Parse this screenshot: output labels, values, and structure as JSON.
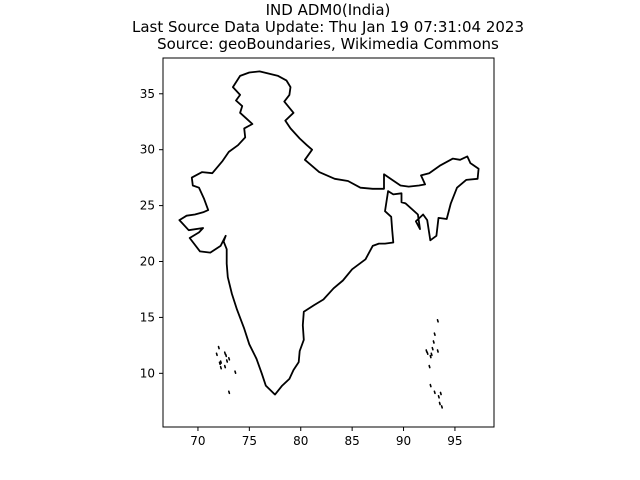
{
  "title": {
    "lines": [
      "IND ADM0(India)",
      "Last Source Data Update: Thu Jan 19 07:31:04 2023",
      "Source: geoBoundaries, Wikimedia Commons"
    ]
  },
  "chart_data": {
    "type": "map",
    "xlim": [
      66.6,
      98.8
    ],
    "ylim": [
      5.2,
      38.2
    ],
    "x_ticks": [
      70,
      75,
      80,
      85,
      90,
      95
    ],
    "y_ticks": [
      10,
      15,
      20,
      25,
      30,
      35
    ],
    "grid": false,
    "line_color": "#000000",
    "background_color": "#ffffff",
    "mainland_outline": [
      [
        68.2,
        23.7
      ],
      [
        68.9,
        24.1
      ],
      [
        69.7,
        24.2
      ],
      [
        70.5,
        24.4
      ],
      [
        71.0,
        24.6
      ],
      [
        70.6,
        25.6
      ],
      [
        70.1,
        26.6
      ],
      [
        69.5,
        26.8
      ],
      [
        69.4,
        27.5
      ],
      [
        70.4,
        28.0
      ],
      [
        71.4,
        27.9
      ],
      [
        72.4,
        29.0
      ],
      [
        73.0,
        29.8
      ],
      [
        73.9,
        30.4
      ],
      [
        74.6,
        31.1
      ],
      [
        74.5,
        31.9
      ],
      [
        75.3,
        32.3
      ],
      [
        74.7,
        32.8
      ],
      [
        74.1,
        33.3
      ],
      [
        74.3,
        33.9
      ],
      [
        73.7,
        34.4
      ],
      [
        74.1,
        34.9
      ],
      [
        73.4,
        35.6
      ],
      [
        74.1,
        36.6
      ],
      [
        75.0,
        36.9
      ],
      [
        76.0,
        37.0
      ],
      [
        77.8,
        36.6
      ],
      [
        78.6,
        36.2
      ],
      [
        79.0,
        35.6
      ],
      [
        78.9,
        34.9
      ],
      [
        78.4,
        34.3
      ],
      [
        79.3,
        33.3
      ],
      [
        78.5,
        32.6
      ],
      [
        79.0,
        31.9
      ],
      [
        79.9,
        31.0
      ],
      [
        80.6,
        30.4
      ],
      [
        81.1,
        30.0
      ],
      [
        80.4,
        29.1
      ],
      [
        81.8,
        28.0
      ],
      [
        83.3,
        27.4
      ],
      [
        84.6,
        27.2
      ],
      [
        85.8,
        26.6
      ],
      [
        87.0,
        26.5
      ],
      [
        88.1,
        26.5
      ],
      [
        88.1,
        27.8
      ],
      [
        88.9,
        27.3
      ],
      [
        89.7,
        26.8
      ],
      [
        90.5,
        26.7
      ],
      [
        91.5,
        26.8
      ],
      [
        92.1,
        26.9
      ],
      [
        91.7,
        27.7
      ],
      [
        92.5,
        27.9
      ],
      [
        93.6,
        28.6
      ],
      [
        94.8,
        29.2
      ],
      [
        95.5,
        29.1
      ],
      [
        96.2,
        29.4
      ],
      [
        96.5,
        28.8
      ],
      [
        97.3,
        28.3
      ],
      [
        97.2,
        27.4
      ],
      [
        96.1,
        27.3
      ],
      [
        95.2,
        26.6
      ],
      [
        94.6,
        25.2
      ],
      [
        94.2,
        23.8
      ],
      [
        93.4,
        23.9
      ],
      [
        93.2,
        22.3
      ],
      [
        92.6,
        21.9
      ],
      [
        92.3,
        23.7
      ],
      [
        91.9,
        24.2
      ],
      [
        91.2,
        23.6
      ],
      [
        91.6,
        22.9
      ],
      [
        91.4,
        24.2
      ],
      [
        90.2,
        25.2
      ],
      [
        89.8,
        25.3
      ],
      [
        89.8,
        26.1
      ],
      [
        89.0,
        26.0
      ],
      [
        88.5,
        26.3
      ],
      [
        88.2,
        24.5
      ],
      [
        88.8,
        24.0
      ],
      [
        88.9,
        22.8
      ],
      [
        89.0,
        21.7
      ],
      [
        88.2,
        21.6
      ],
      [
        87.6,
        21.6
      ],
      [
        87.0,
        21.4
      ],
      [
        86.3,
        20.2
      ],
      [
        85.0,
        19.3
      ],
      [
        84.1,
        18.3
      ],
      [
        83.2,
        17.6
      ],
      [
        82.2,
        16.6
      ],
      [
        81.3,
        16.1
      ],
      [
        80.3,
        15.5
      ],
      [
        80.2,
        14.3
      ],
      [
        80.3,
        13.0
      ],
      [
        79.9,
        12.0
      ],
      [
        79.8,
        11.0
      ],
      [
        79.3,
        10.3
      ],
      [
        78.9,
        9.5
      ],
      [
        78.2,
        8.9
      ],
      [
        77.5,
        8.1
      ],
      [
        76.6,
        8.9
      ],
      [
        76.2,
        10.0
      ],
      [
        75.7,
        11.3
      ],
      [
        75.0,
        12.6
      ],
      [
        74.5,
        14.0
      ],
      [
        73.8,
        15.7
      ],
      [
        73.3,
        17.1
      ],
      [
        72.9,
        18.6
      ],
      [
        72.8,
        19.8
      ],
      [
        72.8,
        21.1
      ],
      [
        72.5,
        21.8
      ],
      [
        72.7,
        22.3
      ],
      [
        72.2,
        21.4
      ],
      [
        71.2,
        20.8
      ],
      [
        70.2,
        20.9
      ],
      [
        69.2,
        22.1
      ],
      [
        70.1,
        22.6
      ],
      [
        70.5,
        23.0
      ],
      [
        69.1,
        22.8
      ],
      [
        68.4,
        23.5
      ],
      [
        68.2,
        23.7
      ]
    ],
    "lakshadweep_islands": [
      [
        72.6,
        11.8
      ],
      [
        72.7,
        11.6
      ],
      [
        73.0,
        11.3
      ],
      [
        72.8,
        11.1
      ],
      [
        72.2,
        11.0
      ],
      [
        72.1,
        10.9
      ],
      [
        72.6,
        10.6
      ],
      [
        72.2,
        10.5
      ],
      [
        72.0,
        12.3
      ],
      [
        73.6,
        10.1
      ],
      [
        73.0,
        8.3
      ],
      [
        71.8,
        11.7
      ]
    ],
    "andaman_nicobar_islands": [
      [
        93.0,
        13.5
      ],
      [
        92.9,
        12.8
      ],
      [
        92.8,
        12.2
      ],
      [
        92.7,
        11.7
      ],
      [
        92.6,
        11.5
      ],
      [
        92.2,
        12.0
      ],
      [
        92.3,
        11.8
      ],
      [
        92.5,
        10.6
      ],
      [
        93.3,
        14.7
      ],
      [
        93.3,
        12.0
      ],
      [
        92.6,
        8.9
      ],
      [
        93.0,
        8.3
      ],
      [
        93.4,
        7.9
      ],
      [
        93.5,
        7.3
      ],
      [
        93.7,
        7.0
      ],
      [
        93.6,
        8.2
      ]
    ]
  }
}
